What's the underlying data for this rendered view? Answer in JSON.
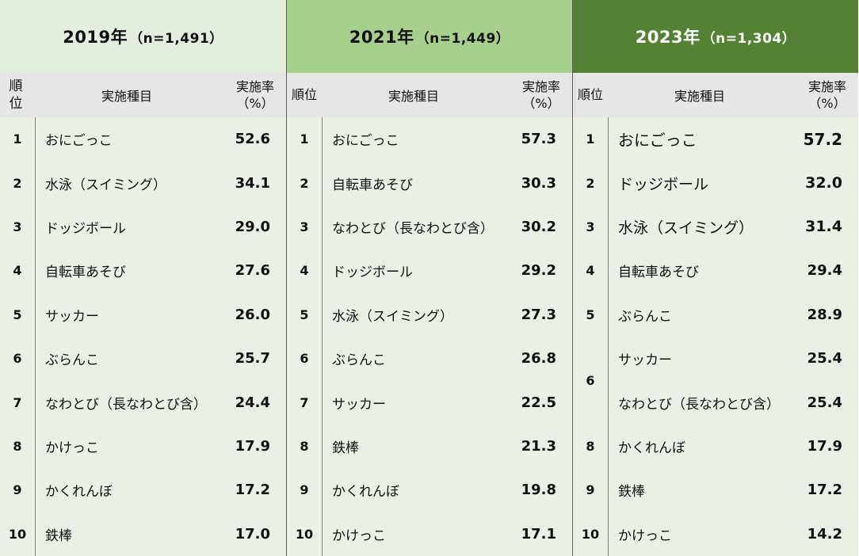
{
  "rank_header_2019": "順\n位",
  "panels": [
    {
      "year_title": "2019年",
      "n_label": "（n=1,491）",
      "rank_header": "順位",
      "item_header": "実施種目",
      "rate_header_line1": "実施率",
      "rate_header_line2": "（%）",
      "rows": [
        {
          "rank": "1",
          "item": "おにごっこ",
          "rate": "52.6"
        },
        {
          "rank": "2",
          "item": "水泳（スイミング）",
          "rate": "34.1"
        },
        {
          "rank": "3",
          "item": "ドッジボール",
          "rate": "29.0"
        },
        {
          "rank": "4",
          "item": "自転車あそび",
          "rate": "27.6"
        },
        {
          "rank": "5",
          "item": "サッカー",
          "rate": "26.0"
        },
        {
          "rank": "6",
          "item": "ぶらんこ",
          "rate": "25.7"
        },
        {
          "rank": "7",
          "item": "なわとび（長なわとび含）",
          "rate": "24.4"
        },
        {
          "rank": "8",
          "item": "かけっこ",
          "rate": "17.9"
        },
        {
          "rank": "9",
          "item": "かくれんぼ",
          "rate": "17.2"
        },
        {
          "rank": "10",
          "item": "鉄棒",
          "rate": "17.0"
        }
      ]
    },
    {
      "year_title": "2021年",
      "n_label": "（n=1,449）",
      "rank_header": "順位",
      "item_header": "実施種目",
      "rate_header_line1": "実施率",
      "rate_header_line2": "（%）",
      "rows": [
        {
          "rank": "1",
          "item": "おにごっこ",
          "rate": "57.3"
        },
        {
          "rank": "2",
          "item": "自転車あそび",
          "rate": "30.3"
        },
        {
          "rank": "3",
          "item": "なわとび（長なわとび含）",
          "rate": "30.2"
        },
        {
          "rank": "4",
          "item": "ドッジボール",
          "rate": "29.2"
        },
        {
          "rank": "5",
          "item": "水泳（スイミング）",
          "rate": "27.3"
        },
        {
          "rank": "6",
          "item": "ぶらんこ",
          "rate": "26.8"
        },
        {
          "rank": "7",
          "item": "サッカー",
          "rate": "22.5"
        },
        {
          "rank": "8",
          "item": "鉄棒",
          "rate": "21.3"
        },
        {
          "rank": "9",
          "item": "かくれんぼ",
          "rate": "19.8"
        },
        {
          "rank": "10",
          "item": "かけっこ",
          "rate": "17.1"
        }
      ]
    },
    {
      "year_title": "2023年",
      "n_label": "（n=1,304）",
      "rank_header": "順位",
      "item_header": "実施種目",
      "rate_header_line1": "実施率",
      "rate_header_line2": "（%）",
      "rows": [
        {
          "rank": "1",
          "item": "おにごっこ",
          "rate": "57.2"
        },
        {
          "rank": "2",
          "item": "ドッジボール",
          "rate": "32.0"
        },
        {
          "rank": "3",
          "item": "水泳（スイミング）",
          "rate": "31.4"
        },
        {
          "rank": "4",
          "item": "自転車あそび",
          "rate": "29.4"
        },
        {
          "rank": "5",
          "item": "ぶらんこ",
          "rate": "28.9"
        },
        {
          "rank": "6",
          "item": "サッカー",
          "rate": "25.4"
        },
        {
          "rank": "",
          "item": "なわとび（長なわとび含）",
          "rate": "25.4"
        },
        {
          "rank": "8",
          "item": "かくれんぼ",
          "rate": "17.9"
        },
        {
          "rank": "9",
          "item": "鉄棒",
          "rate": "17.2"
        },
        {
          "rank": "10",
          "item": "かけっこ",
          "rate": "14.2"
        }
      ]
    }
  ],
  "colors": {
    "title_2019": "#e2efdc",
    "title_2021": "#a8d08d",
    "title_2023": "#548235",
    "body_bg": "#eaf0e6",
    "header_bg": "#e6e6e6"
  }
}
